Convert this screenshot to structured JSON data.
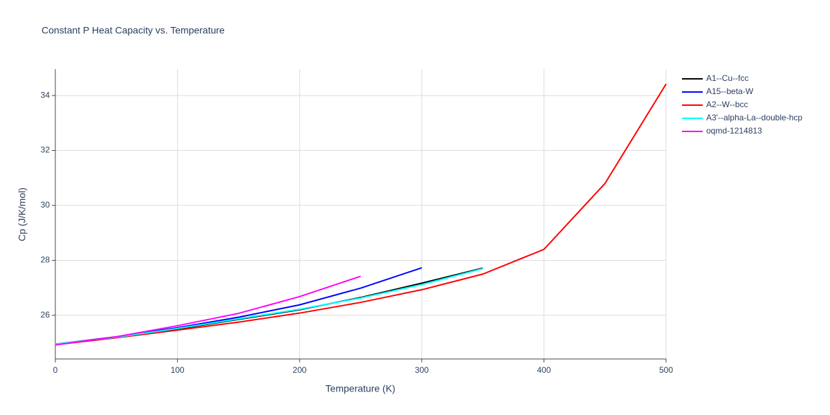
{
  "chart_data": {
    "type": "line",
    "title": "Constant P Heat Capacity vs. Temperature",
    "x_label": "Temperature (K)",
    "y_label": "Cp (J/K/mol)",
    "xlim": [
      0,
      500
    ],
    "ylim": [
      24.41,
      34.96
    ],
    "xticks": [
      0,
      100,
      200,
      300,
      400,
      500
    ],
    "yticks": [
      26,
      28,
      30,
      32,
      34
    ],
    "grid": true,
    "legend": "right",
    "series": [
      {
        "name": "A1--Cu--fcc",
        "color": "#000000",
        "x": [
          0,
          50,
          100,
          150,
          200,
          250,
          300,
          350
        ],
        "values": [
          24.95,
          25.2,
          25.5,
          25.85,
          26.2,
          26.65,
          27.17,
          27.72
        ]
      },
      {
        "name": "A15--beta-W",
        "color": "#0000ff",
        "x": [
          0,
          50,
          100,
          150,
          200,
          250,
          300
        ],
        "values": [
          24.95,
          25.22,
          25.55,
          25.93,
          26.38,
          26.99,
          27.73
        ]
      },
      {
        "name": "A2--W--bcc",
        "color": "#ff0000",
        "x": [
          0,
          50,
          100,
          150,
          200,
          250,
          300,
          350,
          400,
          450,
          500
        ],
        "values": [
          24.93,
          25.18,
          25.46,
          25.75,
          26.08,
          26.47,
          26.93,
          27.5,
          28.4,
          30.8,
          34.42
        ]
      },
      {
        "name": "A3'--alpha-La--double-hcp",
        "color": "#00ffff",
        "x": [
          0,
          50,
          100,
          150,
          200,
          250,
          300,
          350
        ],
        "values": [
          24.95,
          25.2,
          25.52,
          25.87,
          26.22,
          26.63,
          27.12,
          27.7
        ]
      },
      {
        "name": "oqmd-1214813",
        "color": "#ff00ff",
        "x": [
          0,
          50,
          100,
          150,
          200,
          250
        ],
        "values": [
          24.92,
          25.22,
          25.62,
          26.07,
          26.68,
          27.42
        ]
      }
    ]
  }
}
